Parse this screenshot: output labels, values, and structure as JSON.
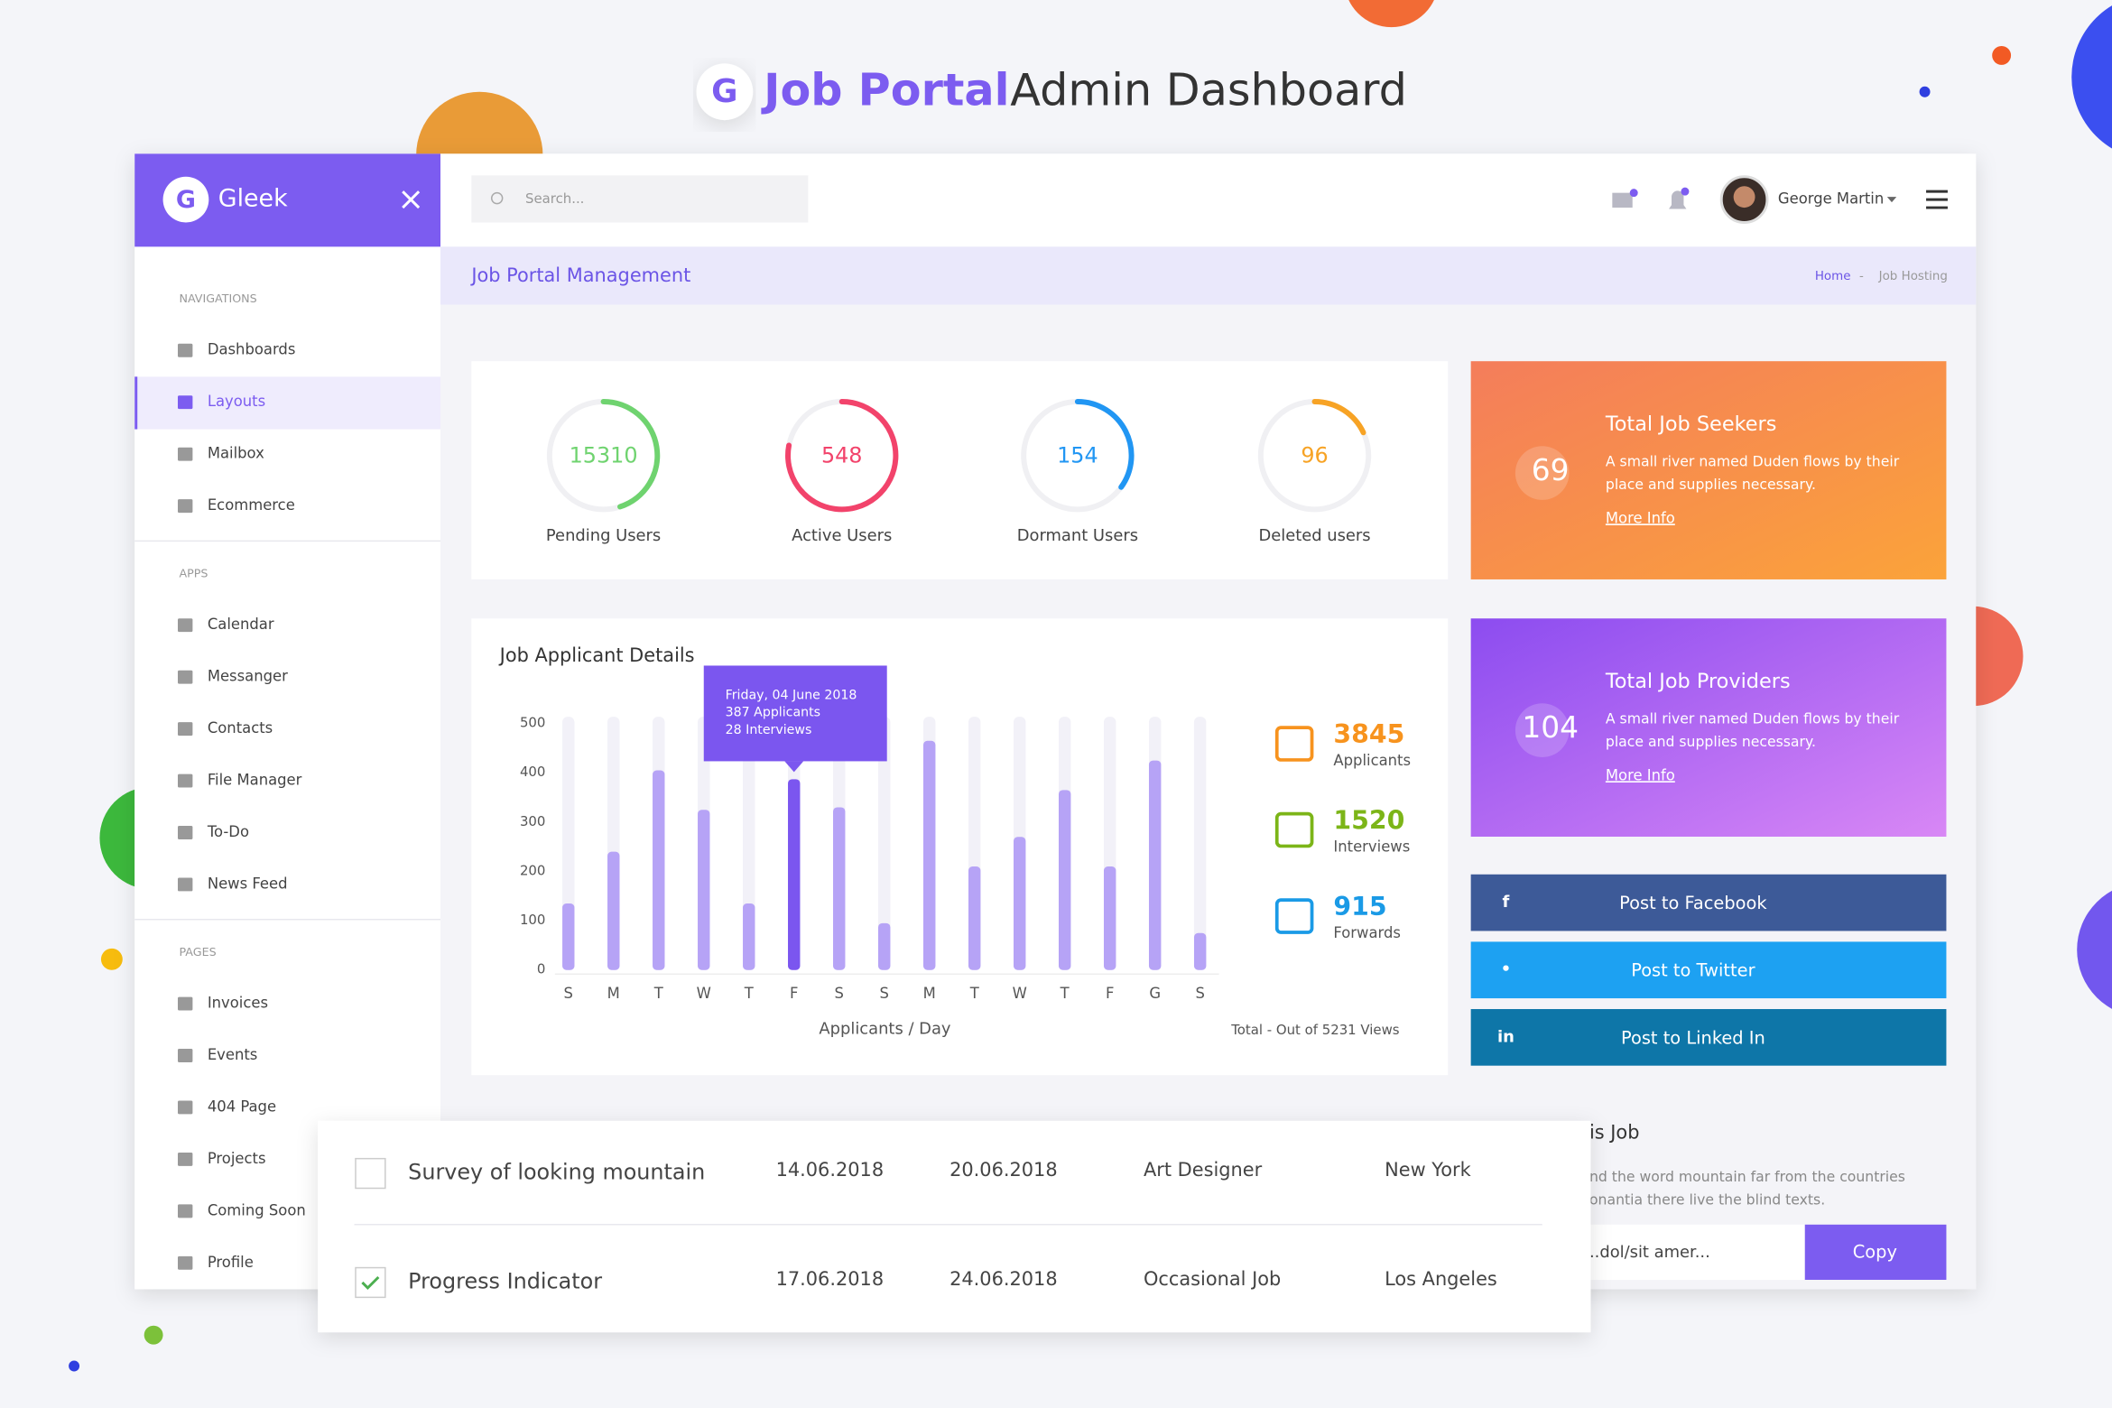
{
  "header": {
    "brand": "Job Portal",
    "title": "Admin Dashboard"
  },
  "app": {
    "logo": "Gleek",
    "search_placeholder": "Search...",
    "user": "George Martin"
  },
  "sidebar": [
    {
      "heading": "NAVIGATIONS",
      "items": [
        "Dashboards",
        "Layouts",
        "Mailbox",
        "Ecommerce"
      ]
    },
    {
      "heading": "APPS",
      "items": [
        "Calendar",
        "Messanger",
        "Contacts",
        "File Manager",
        "To-Do",
        "News Feed"
      ]
    },
    {
      "heading": "PAGES",
      "items": [
        "Invoices",
        "Events",
        "404 Page",
        "Projects",
        "Coming Soon",
        "Profile"
      ]
    }
  ],
  "page": {
    "title": "Job Portal Management",
    "breadcrumb": [
      "Home",
      "Job Hosting"
    ]
  },
  "stats": [
    {
      "value": 15310,
      "label": "Pending Users",
      "color": "#6fd36f",
      "arc": 45
    },
    {
      "value": 548,
      "label": "Active Users",
      "color": "#f2436b",
      "arc": 78
    },
    {
      "value": 154,
      "label": "Dormant Users",
      "color": "#2196f3",
      "arc": 35
    },
    {
      "value": 96,
      "label": "Deleted users",
      "color": "#f7a325",
      "arc": 18
    }
  ],
  "chart_data": {
    "type": "bar",
    "title": "Job Applicant Details",
    "categories": [
      "S",
      "M",
      "T",
      "W",
      "T",
      "F",
      "S",
      "S",
      "M",
      "T",
      "W",
      "T",
      "F",
      "G",
      "S"
    ],
    "values": [
      135,
      240,
      405,
      325,
      135,
      387,
      330,
      95,
      465,
      210,
      270,
      365,
      210,
      425,
      75
    ],
    "ylim": [
      0,
      500
    ],
    "yticks": [
      0,
      100,
      200,
      300,
      400,
      500
    ],
    "x_label": "Applicants / Day",
    "footnote": "Total - Out of 5231 Views",
    "color": "#b6a3f6",
    "highlight_color": "#7b56ef",
    "highlight_index": 5,
    "tooltip": [
      "Friday, 04 June 2018",
      "387 Applicants",
      "28 Interviews"
    ]
  },
  "summary": [
    {
      "value": 3845,
      "label": "Applicants",
      "color": "#f7931e"
    },
    {
      "value": 1520,
      "label": "Interviews",
      "color": "#7cb518"
    },
    {
      "value": 915,
      "label": "Forwards",
      "color": "#1a9ae6"
    }
  ],
  "cards": [
    {
      "value": 69,
      "title": "Total Job Seekers",
      "text": [
        "A small river named Duden flows by their",
        "place and supplies necessary."
      ],
      "link": "More Info"
    },
    {
      "value": 104,
      "title": "Total Job Providers",
      "text": [
        "A small river named Duden flows by their",
        "place and supplies necessary."
      ],
      "link": "More Info"
    }
  ],
  "social": [
    "Post to Facebook",
    "Post to Twitter",
    "Post to Linked In"
  ],
  "share": {
    "title": "is Job",
    "text": [
      "nd the word mountain far from the countries",
      "onantia there live the blind texts."
    ],
    "url": "..dol/sit amer...",
    "button": "Copy"
  },
  "table": {
    "rows": [
      [
        "Survey of looking mountain",
        "14.06.2018",
        "20.06.2018",
        "Art Designer",
        "New York"
      ],
      [
        "Progress Indicator",
        "17.06.2018",
        "24.06.2018",
        "Occasional Job",
        "Los Angeles"
      ]
    ],
    "checked": [
      false,
      true
    ]
  }
}
